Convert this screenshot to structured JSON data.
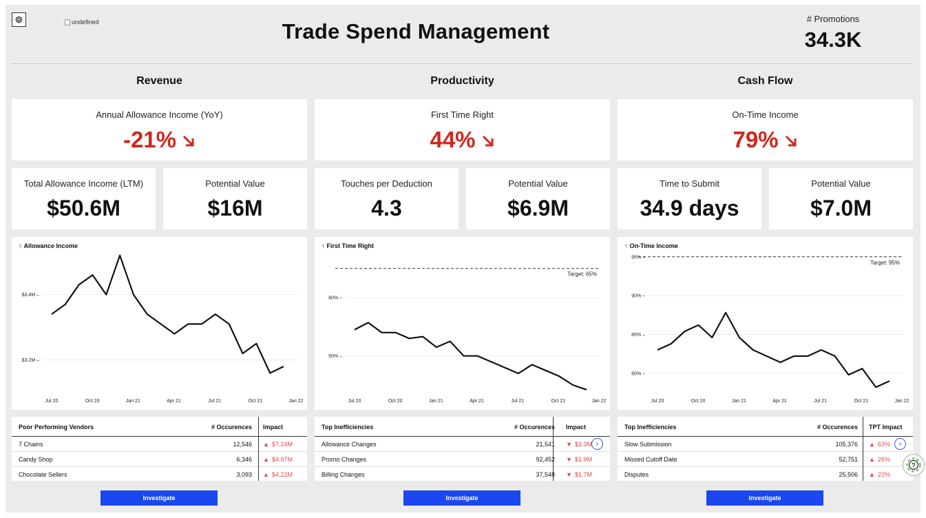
{
  "header": {
    "title": "Trade Spend Management",
    "logo_alt": "undefined",
    "promotions_label": "# Promotions",
    "promotions_value": "34.3K"
  },
  "sections": [
    {
      "title": "Revenue",
      "hero": {
        "label": "Annual Allowance Income (YoY)",
        "value": "-21%"
      },
      "mini": [
        {
          "label": "Total Allowance Income (LTM)",
          "value": "$50.6M"
        },
        {
          "label": "Potential Value",
          "value": "$16M"
        }
      ],
      "chart_title": "Allowance Income",
      "table": {
        "headers": [
          "Poor Performing Vendors",
          "# Occurences",
          "Impact"
        ],
        "rows": [
          {
            "name": "7 Chains",
            "count": "12,546",
            "impact": "$7.24M",
            "dir": "up"
          },
          {
            "name": "Candy Shop",
            "count": "6,346",
            "impact": "$4.97M",
            "dir": "up"
          },
          {
            "name": "Chocolate Sellers",
            "count": "3,093",
            "impact": "$4.22M",
            "dir": "up"
          }
        ]
      },
      "button": "Investigate"
    },
    {
      "title": "Productivity",
      "hero": {
        "label": "First Time Right",
        "value": "44%"
      },
      "mini": [
        {
          "label": "Touches per Deduction",
          "value": "4.3"
        },
        {
          "label": "Potential Value",
          "value": "$6.9M"
        }
      ],
      "chart_title": "First Time Right",
      "table": {
        "headers": [
          "Top Inefficiencies",
          "# Occurences",
          "Impact"
        ],
        "rows": [
          {
            "name": "Allowance Changes",
            "count": "21,541",
            "impact": "$3.3M",
            "dir": "down"
          },
          {
            "name": "Promo Changes",
            "count": "92,452",
            "impact": "$1.9M",
            "dir": "down"
          },
          {
            "name": "Billing Changes",
            "count": "37,548",
            "impact": "$1.7M",
            "dir": "down"
          }
        ]
      },
      "button": "Investigate"
    },
    {
      "title": "Cash Flow",
      "hero": {
        "label": "On-Time Income",
        "value": "79%"
      },
      "mini": [
        {
          "label": "Time to Submit",
          "value": "34.9 days"
        },
        {
          "label": "Potential Value",
          "value": "$7.0M"
        }
      ],
      "chart_title": "On-Time Income",
      "table": {
        "headers": [
          "Top Inefficiencies",
          "# Occurences",
          "TPT Impact"
        ],
        "rows": [
          {
            "name": "Slow Submission",
            "count": "105,376",
            "impact": "63%",
            "dir": "up"
          },
          {
            "name": "Missed Cutoff Date",
            "count": "52,751",
            "impact": "26%",
            "dir": "up"
          },
          {
            "name": "Disputes",
            "count": "25,506",
            "impact": "22%",
            "dir": "up"
          }
        ]
      },
      "button": "Investigate"
    }
  ],
  "colors": {
    "negative": "#d0271d",
    "impact": "#e0484a",
    "button": "#1a47f0",
    "accent_circle": "#3b5bdb"
  },
  "icons": {
    "settings": "gear-icon",
    "help": "help-icon",
    "trend": "arrow-down-right-icon"
  },
  "chart_data": [
    {
      "type": "line",
      "title": "Allowance Income",
      "x_ticks": [
        "Jul 20",
        "Oct 20",
        "Jan 21",
        "Apr 21",
        "Jul 21",
        "Oct 21",
        "Jan 22"
      ],
      "y_ticks": [
        {
          "value": 3.4,
          "label": "$3.4M"
        },
        {
          "value": 3.2,
          "label": "$3.2M"
        }
      ],
      "ylim": [
        3.1,
        3.53
      ],
      "values": [
        3.34,
        3.37,
        3.43,
        3.46,
        3.4,
        3.52,
        3.4,
        3.34,
        3.31,
        3.28,
        3.31,
        3.31,
        3.34,
        3.31,
        3.22,
        3.25,
        3.16,
        3.18
      ]
    },
    {
      "type": "line",
      "title": "First Time Right",
      "x_ticks": [
        "Jul 20",
        "Oct 20",
        "Jan 21",
        "Apr 21",
        "Jul 21",
        "Oct 21",
        "Jan 22"
      ],
      "y_ticks": [
        {
          "value": 60,
          "label": "60%"
        },
        {
          "value": 50,
          "label": "50%"
        }
      ],
      "ylim": [
        43.7,
        67.8
      ],
      "target": {
        "value": 65,
        "label": "Target: 65%"
      },
      "values": [
        54.5,
        55.7,
        54.0,
        54.0,
        53.0,
        53.3,
        51.5,
        52.5,
        50.0,
        50.0,
        49.0,
        48.0,
        47.0,
        48.5,
        47.5,
        46.5,
        45.0,
        44.2
      ]
    },
    {
      "type": "line",
      "title": "On-Time Income",
      "x_ticks": [
        "Jul 20",
        "Oct 20",
        "Jan 21",
        "Apr 21",
        "Jul 21",
        "Oct 21",
        "Jan 22"
      ],
      "y_ticks": [
        {
          "value": 95,
          "label": "95%"
        },
        {
          "value": 90,
          "label": "90%"
        },
        {
          "value": 85,
          "label": "85%"
        },
        {
          "value": 80,
          "label": "80%"
        }
      ],
      "ylim": [
        77.5,
        95.6
      ],
      "target": {
        "value": 95,
        "label": "Target: 95%"
      },
      "values": [
        83.0,
        83.8,
        85.4,
        86.2,
        84.6,
        87.8,
        84.6,
        83.0,
        82.2,
        81.4,
        82.2,
        82.2,
        83.0,
        82.2,
        79.8,
        80.6,
        78.2,
        79.0
      ]
    }
  ]
}
